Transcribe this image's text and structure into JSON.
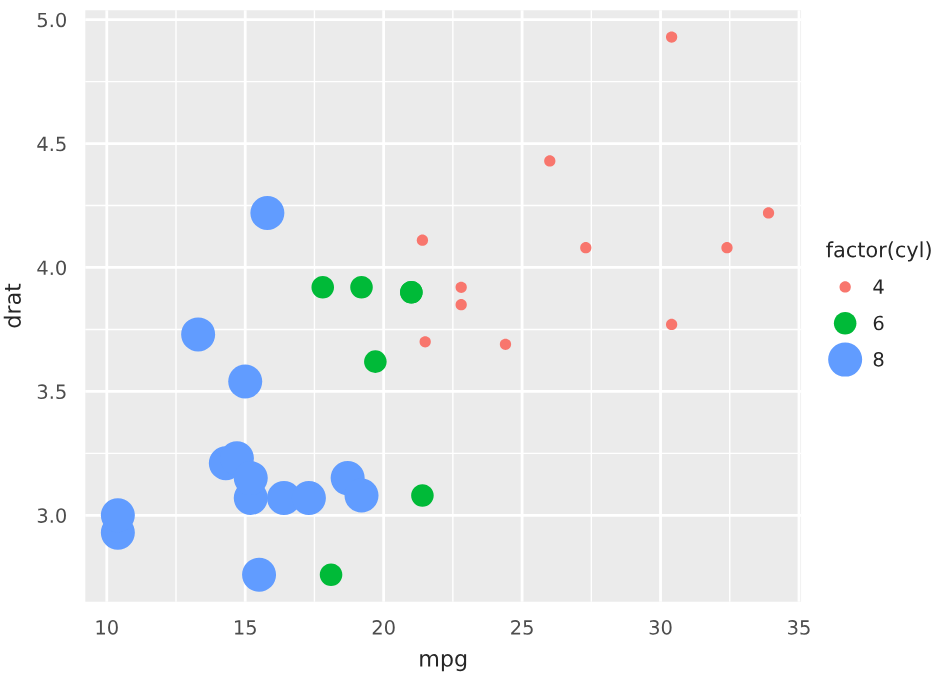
{
  "chart_data": {
    "type": "bubble",
    "xlabel": "mpg",
    "ylabel": "drat",
    "legend_title": "factor(cyl)",
    "legend": "right",
    "grid": true,
    "xlim": [
      9.225,
      35.075
    ],
    "xticks": [
      10,
      15,
      20,
      25,
      30,
      35
    ],
    "ylim": [
      2.6515,
      5.0385
    ],
    "yticks": [
      {
        "value": 3,
        "label": "3.0"
      },
      3.5,
      {
        "value": 4,
        "label": "4.0"
      },
      4.5,
      {
        "value": 5,
        "label": "5.0"
      }
    ],
    "series": [
      {
        "name": "4",
        "color": "#f8766d",
        "x": [
          22.8,
          24.4,
          22.8,
          32.4,
          30.4,
          33.9,
          21.5,
          27.3,
          26.0,
          30.4,
          21.4
        ],
        "values": [
          3.85,
          3.69,
          3.92,
          4.08,
          4.93,
          4.22,
          3.7,
          4.08,
          4.43,
          3.77,
          4.11
        ],
        "sizes": [
          0.11,
          0.11,
          0.11,
          0.11,
          0.11,
          0.11,
          0.11,
          0.11,
          0.11,
          0.11,
          0.11
        ]
      },
      {
        "name": "6",
        "color": "#00ba38",
        "x": [
          21.0,
          21.0,
          21.4,
          18.1,
          19.2,
          17.8,
          19.7
        ],
        "values": [
          3.9,
          3.9,
          3.08,
          2.76,
          3.92,
          3.92,
          3.62
        ],
        "sizes": [
          0.44,
          0.44,
          0.44,
          0.44,
          0.44,
          0.44,
          0.44
        ]
      },
      {
        "name": "8",
        "color": "#619cff",
        "x": [
          18.7,
          14.3,
          16.4,
          17.3,
          15.2,
          10.4,
          10.4,
          14.7,
          15.5,
          15.2,
          13.3,
          19.2,
          15.8,
          15.0
        ],
        "values": [
          3.15,
          3.21,
          3.07,
          3.07,
          3.07,
          2.93,
          3.0,
          3.23,
          2.76,
          3.15,
          3.73,
          3.08,
          4.22,
          3.54
        ],
        "sizes": [
          1,
          1,
          1,
          1,
          1,
          1,
          1,
          1,
          1,
          1,
          1,
          1,
          1,
          1
        ]
      }
    ]
  }
}
